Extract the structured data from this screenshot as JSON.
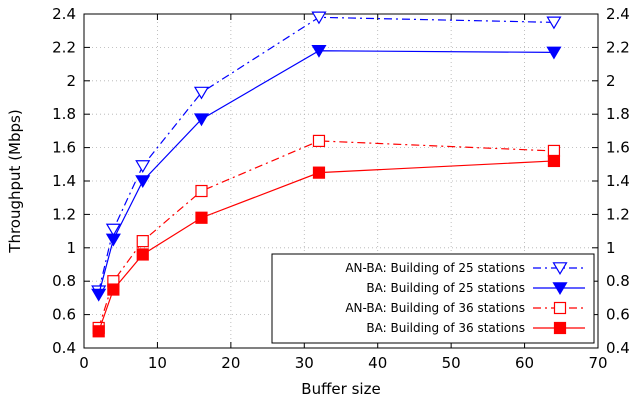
{
  "chart_data": {
    "type": "line",
    "xlabel": "Buffer size",
    "ylabel": "Throughput (Mbps)",
    "xlim": [
      0,
      70
    ],
    "ylim": [
      0.4,
      2.4
    ],
    "x_ticks": [
      "0",
      "10",
      "20",
      "30",
      "40",
      "50",
      "60",
      "70"
    ],
    "y_ticks": [
      "0.4",
      "0.6",
      "0.8",
      "1",
      "1.2",
      "1.4",
      "1.6",
      "1.8",
      "2",
      "2.2",
      "2.4"
    ],
    "y2_ticks": [
      "0.4",
      "0.6",
      "0.8",
      "1",
      "1.2",
      "1.4",
      "1.6",
      "1.8",
      "2",
      "2.2",
      "2.4"
    ],
    "grid": true,
    "legend_position": "bottom-right",
    "x": [
      2,
      4,
      8,
      16,
      32,
      64
    ],
    "series": [
      {
        "name": "AN-BA: Building of 25 stations",
        "values": [
          0.74,
          1.11,
          1.49,
          1.93,
          2.38,
          2.35
        ],
        "color": "#0000ff",
        "line": "dash-dot",
        "marker": "triangle-down-open"
      },
      {
        "name": "BA: Building of 25 stations",
        "values": [
          0.72,
          1.05,
          1.4,
          1.77,
          2.18,
          2.17
        ],
        "color": "#0000ff",
        "line": "solid",
        "marker": "triangle-down-filled"
      },
      {
        "name": "AN-BA: Building of 36 stations",
        "values": [
          0.52,
          0.8,
          1.04,
          1.34,
          1.64,
          1.58
        ],
        "color": "#ff0000",
        "line": "dash-dot",
        "marker": "square-open"
      },
      {
        "name": "BA: Building of 36 stations",
        "values": [
          0.5,
          0.75,
          0.96,
          1.18,
          1.45,
          1.52
        ],
        "color": "#ff0000",
        "line": "solid",
        "marker": "square-filled"
      }
    ]
  }
}
